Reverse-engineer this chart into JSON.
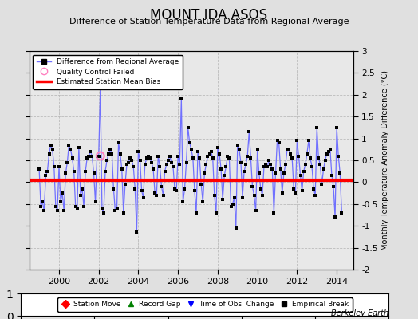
{
  "title": "MOUNT IDA ASOS",
  "subtitle": "Difference of Station Temperature Data from Regional Average",
  "ylabel": "Monthly Temperature Anomaly Difference (°C)",
  "bias_value": 0.05,
  "xlim": [
    1998.5,
    2014.83
  ],
  "ylim": [
    -2.0,
    3.0
  ],
  "yticks": [
    -2,
    -1.5,
    -1,
    -0.5,
    0,
    0.5,
    1,
    1.5,
    2,
    2.5,
    3
  ],
  "xticks": [
    2000,
    2002,
    2004,
    2006,
    2008,
    2010,
    2012,
    2014
  ],
  "background_color": "#e8e8e8",
  "outer_background": "#e0e0e0",
  "line_color": "#7070ff",
  "bias_color": "#ff0000",
  "marker_color": "#000000",
  "qc_color": "#ff80c0",
  "time_series": [
    [
      1999.0,
      0.3
    ],
    [
      1999.083,
      -0.55
    ],
    [
      1999.167,
      -0.45
    ],
    [
      1999.25,
      -0.65
    ],
    [
      1999.333,
      0.15
    ],
    [
      1999.417,
      0.25
    ],
    [
      1999.5,
      0.65
    ],
    [
      1999.583,
      0.85
    ],
    [
      1999.667,
      0.75
    ],
    [
      1999.75,
      0.35
    ],
    [
      1999.833,
      -0.55
    ],
    [
      1999.917,
      -0.65
    ],
    [
      2000.0,
      0.35
    ],
    [
      2000.083,
      -0.45
    ],
    [
      2000.167,
      -0.25
    ],
    [
      2000.25,
      -0.65
    ],
    [
      2000.333,
      0.2
    ],
    [
      2000.417,
      0.45
    ],
    [
      2000.5,
      0.85
    ],
    [
      2000.583,
      0.75
    ],
    [
      2000.667,
      0.55
    ],
    [
      2000.75,
      0.25
    ],
    [
      2000.833,
      -0.55
    ],
    [
      2000.917,
      -0.6
    ],
    [
      2001.0,
      0.8
    ],
    [
      2001.083,
      -0.3
    ],
    [
      2001.167,
      -0.15
    ],
    [
      2001.25,
      -0.55
    ],
    [
      2001.333,
      0.25
    ],
    [
      2001.417,
      0.55
    ],
    [
      2001.5,
      0.6
    ],
    [
      2001.583,
      0.7
    ],
    [
      2001.667,
      0.6
    ],
    [
      2001.75,
      0.2
    ],
    [
      2001.833,
      -0.45
    ],
    [
      2001.917,
      0.6
    ],
    [
      2002.0,
      0.6
    ],
    [
      2002.083,
      2.15
    ],
    [
      2002.167,
      -0.6
    ],
    [
      2002.25,
      -0.7
    ],
    [
      2002.333,
      0.25
    ],
    [
      2002.417,
      0.5
    ],
    [
      2002.5,
      0.65
    ],
    [
      2002.583,
      0.75
    ],
    [
      2002.667,
      0.65
    ],
    [
      2002.75,
      -0.15
    ],
    [
      2002.833,
      -0.65
    ],
    [
      2002.917,
      -0.6
    ],
    [
      2003.0,
      0.9
    ],
    [
      2003.083,
      0.65
    ],
    [
      2003.167,
      0.3
    ],
    [
      2003.25,
      -0.7
    ],
    [
      2003.333,
      -0.05
    ],
    [
      2003.417,
      0.4
    ],
    [
      2003.5,
      0.45
    ],
    [
      2003.583,
      0.55
    ],
    [
      2003.667,
      0.5
    ],
    [
      2003.75,
      0.35
    ],
    [
      2003.833,
      -0.15
    ],
    [
      2003.917,
      -1.15
    ],
    [
      2004.0,
      0.7
    ],
    [
      2004.083,
      0.5
    ],
    [
      2004.167,
      -0.2
    ],
    [
      2004.25,
      -0.35
    ],
    [
      2004.333,
      0.4
    ],
    [
      2004.417,
      0.55
    ],
    [
      2004.5,
      0.6
    ],
    [
      2004.583,
      0.55
    ],
    [
      2004.667,
      0.45
    ],
    [
      2004.75,
      0.3
    ],
    [
      2004.833,
      -0.25
    ],
    [
      2004.917,
      -0.3
    ],
    [
      2005.0,
      0.6
    ],
    [
      2005.083,
      0.35
    ],
    [
      2005.167,
      -0.1
    ],
    [
      2005.25,
      -0.3
    ],
    [
      2005.333,
      0.25
    ],
    [
      2005.417,
      0.4
    ],
    [
      2005.5,
      0.5
    ],
    [
      2005.583,
      0.6
    ],
    [
      2005.667,
      0.45
    ],
    [
      2005.75,
      0.35
    ],
    [
      2005.833,
      -0.15
    ],
    [
      2005.917,
      -0.2
    ],
    [
      2006.0,
      0.6
    ],
    [
      2006.083,
      0.4
    ],
    [
      2006.167,
      1.9
    ],
    [
      2006.25,
      -0.45
    ],
    [
      2006.333,
      -0.15
    ],
    [
      2006.417,
      0.45
    ],
    [
      2006.5,
      1.25
    ],
    [
      2006.583,
      0.9
    ],
    [
      2006.667,
      0.75
    ],
    [
      2006.75,
      0.55
    ],
    [
      2006.833,
      -0.2
    ],
    [
      2006.917,
      -0.7
    ],
    [
      2007.0,
      0.7
    ],
    [
      2007.083,
      0.55
    ],
    [
      2007.167,
      -0.05
    ],
    [
      2007.25,
      -0.45
    ],
    [
      2007.333,
      0.2
    ],
    [
      2007.417,
      0.4
    ],
    [
      2007.5,
      0.6
    ],
    [
      2007.583,
      0.65
    ],
    [
      2007.667,
      0.7
    ],
    [
      2007.75,
      0.55
    ],
    [
      2007.833,
      -0.3
    ],
    [
      2007.917,
      -0.7
    ],
    [
      2008.0,
      0.8
    ],
    [
      2008.083,
      0.65
    ],
    [
      2008.167,
      0.3
    ],
    [
      2008.25,
      -0.4
    ],
    [
      2008.333,
      0.15
    ],
    [
      2008.417,
      0.35
    ],
    [
      2008.5,
      0.6
    ],
    [
      2008.583,
      0.55
    ],
    [
      2008.667,
      -0.55
    ],
    [
      2008.75,
      -0.5
    ],
    [
      2008.833,
      -0.35
    ],
    [
      2008.917,
      -1.05
    ],
    [
      2009.0,
      0.85
    ],
    [
      2009.083,
      0.75
    ],
    [
      2009.167,
      0.45
    ],
    [
      2009.25,
      -0.35
    ],
    [
      2009.333,
      0.25
    ],
    [
      2009.417,
      0.4
    ],
    [
      2009.5,
      0.6
    ],
    [
      2009.583,
      1.15
    ],
    [
      2009.667,
      0.55
    ],
    [
      2009.75,
      -0.1
    ],
    [
      2009.833,
      -0.3
    ],
    [
      2009.917,
      -0.65
    ],
    [
      2010.0,
      0.75
    ],
    [
      2010.083,
      0.2
    ],
    [
      2010.167,
      -0.15
    ],
    [
      2010.25,
      -0.3
    ],
    [
      2010.333,
      0.35
    ],
    [
      2010.417,
      0.4
    ],
    [
      2010.5,
      0.35
    ],
    [
      2010.583,
      0.5
    ],
    [
      2010.667,
      0.4
    ],
    [
      2010.75,
      0.3
    ],
    [
      2010.833,
      -0.7
    ],
    [
      2010.917,
      0.2
    ],
    [
      2011.0,
      0.95
    ],
    [
      2011.083,
      0.9
    ],
    [
      2011.167,
      0.3
    ],
    [
      2011.25,
      -0.25
    ],
    [
      2011.333,
      0.2
    ],
    [
      2011.417,
      0.4
    ],
    [
      2011.5,
      0.75
    ],
    [
      2011.583,
      0.75
    ],
    [
      2011.667,
      0.65
    ],
    [
      2011.75,
      0.55
    ],
    [
      2011.833,
      -0.15
    ],
    [
      2011.917,
      -0.25
    ],
    [
      2012.0,
      0.95
    ],
    [
      2012.083,
      0.6
    ],
    [
      2012.167,
      0.15
    ],
    [
      2012.25,
      -0.2
    ],
    [
      2012.333,
      0.25
    ],
    [
      2012.417,
      0.4
    ],
    [
      2012.5,
      0.65
    ],
    [
      2012.583,
      0.95
    ],
    [
      2012.667,
      0.55
    ],
    [
      2012.75,
      0.35
    ],
    [
      2012.833,
      -0.15
    ],
    [
      2012.917,
      -0.3
    ],
    [
      2013.0,
      1.25
    ],
    [
      2013.083,
      0.55
    ],
    [
      2013.167,
      0.4
    ],
    [
      2013.25,
      -0.05
    ],
    [
      2013.333,
      0.3
    ],
    [
      2013.417,
      0.5
    ],
    [
      2013.5,
      0.65
    ],
    [
      2013.583,
      0.7
    ],
    [
      2013.667,
      0.75
    ],
    [
      2013.75,
      0.15
    ],
    [
      2013.833,
      -0.1
    ],
    [
      2013.917,
      -0.8
    ],
    [
      2014.0,
      1.25
    ],
    [
      2014.083,
      0.6
    ],
    [
      2014.167,
      0.2
    ],
    [
      2014.25,
      -0.7
    ]
  ],
  "qc_failed": [
    [
      2002.083,
      0.6
    ]
  ],
  "berkeley_earth_text": "Berkeley Earth"
}
